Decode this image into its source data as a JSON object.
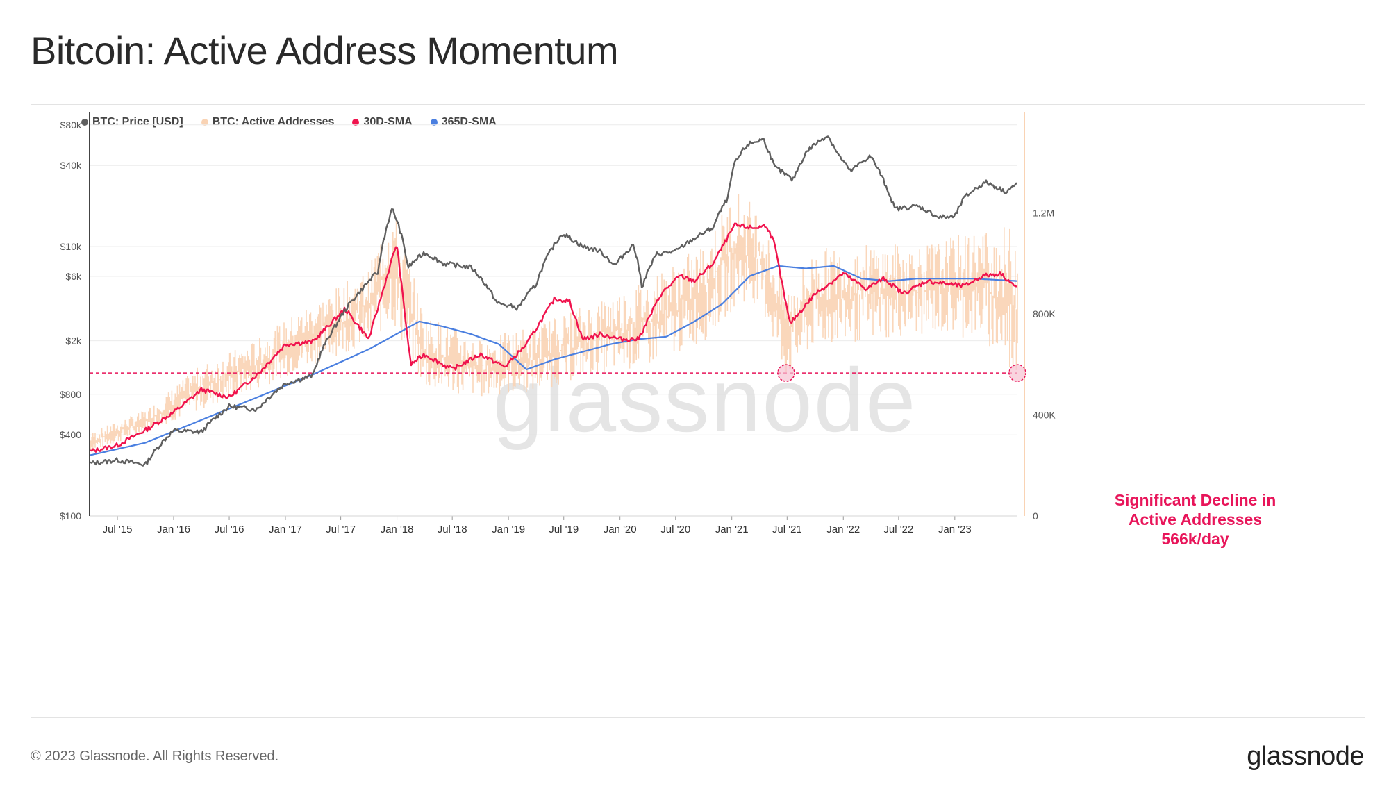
{
  "title": "Bitcoin: Active Address Momentum",
  "footer": {
    "copyright": "© 2023 Glassnode. All Rights Reserved.",
    "brand": "glassnode"
  },
  "watermark": "glassnode",
  "colors": {
    "price": "#5f5f5f",
    "active": "#f9d3b4",
    "sma30": "#f0134d",
    "sma365": "#4a7fe0",
    "annotation": "#e8155a"
  },
  "chart_data": {
    "type": "line",
    "legend": [
      {
        "name": "BTC: Price [USD]",
        "color": "#5f5f5f"
      },
      {
        "name": "BTC: Active Addresses",
        "color": "#f9d3b4"
      },
      {
        "name": "30D-SMA",
        "color": "#f0134d"
      },
      {
        "name": "365D-SMA",
        "color": "#4a7fe0"
      }
    ],
    "legend_position": "top-left",
    "x_ticks": [
      "Jul '15",
      "Jan '16",
      "Jul '16",
      "Jan '17",
      "Jul '17",
      "Jan '18",
      "Jul '18",
      "Jan '19",
      "Jul '19",
      "Jan '20",
      "Jul '20",
      "Jan '21",
      "Jul '21",
      "Jan '22",
      "Jul '22",
      "Jan '23"
    ],
    "x_range": [
      "2015-04-01",
      "2023-07-25"
    ],
    "y_left": {
      "scale": "log",
      "range": [
        100,
        100000
      ],
      "ticks": [
        "$100",
        "$400",
        "$800",
        "$2k",
        "$6k",
        "$10k",
        "$40k",
        "$80k"
      ],
      "tick_values": [
        100,
        400,
        800,
        2000,
        6000,
        10000,
        40000,
        80000
      ]
    },
    "y_right": {
      "scale": "linear",
      "range": [
        0,
        1600000
      ],
      "ticks": [
        "0",
        "400K",
        "800K",
        "1.2M"
      ],
      "tick_values": [
        0,
        400000,
        800000,
        1200000
      ]
    },
    "grid": true,
    "threshold_line": {
      "value": 566000
    },
    "annotation": {
      "lines": [
        "Significant Decline in",
        "Active Addresses",
        "566k/day"
      ]
    },
    "markers": [
      {
        "date": "2021-06-28",
        "value": 566000
      },
      {
        "date": "2023-07-25",
        "value": 566000
      }
    ],
    "series": [
      {
        "name": "BTC: Price [USD]",
        "axis": "left",
        "x": [
          "2015-04-01",
          "2015-07-01",
          "2015-10-01",
          "2016-01-01",
          "2016-04-01",
          "2016-07-01",
          "2016-10-01",
          "2017-01-01",
          "2017-04-01",
          "2017-06-15",
          "2017-09-01",
          "2017-11-01",
          "2017-12-17",
          "2018-02-06",
          "2018-04-01",
          "2018-06-01",
          "2018-09-01",
          "2018-11-25",
          "2019-02-01",
          "2019-04-01",
          "2019-06-26",
          "2019-09-01",
          "2019-10-26",
          "2019-12-15",
          "2020-02-14",
          "2020-03-13",
          "2020-05-01",
          "2020-07-01",
          "2020-09-01",
          "2020-11-01",
          "2020-12-20",
          "2021-01-08",
          "2021-02-21",
          "2021-04-14",
          "2021-05-20",
          "2021-07-20",
          "2021-09-07",
          "2021-11-10",
          "2021-12-15",
          "2022-01-24",
          "2022-03-30",
          "2022-05-15",
          "2022-06-18",
          "2022-09-01",
          "2022-11-09",
          "2023-01-01",
          "2023-02-01",
          "2023-03-20",
          "2023-04-14",
          "2023-06-15",
          "2023-07-25"
        ],
        "values": [
          245,
          260,
          240,
          430,
          420,
          650,
          620,
          960,
          1100,
          2600,
          4600,
          6500,
          19000,
          7000,
          9000,
          7500,
          7000,
          3800,
          3500,
          5200,
          12500,
          10000,
          9300,
          7200,
          10300,
          5000,
          8800,
          9200,
          11500,
          13800,
          23000,
          40000,
          57000,
          63000,
          39000,
          31000,
          52000,
          67000,
          48000,
          36000,
          47000,
          30000,
          19000,
          20000,
          16500,
          16600,
          23000,
          28000,
          30000,
          25500,
          29200
        ]
      },
      {
        "name": "BTC: Active Addresses (daily range)",
        "axis": "right",
        "x": [
          "2015-04-01",
          "2015-10-01",
          "2016-04-01",
          "2016-10-01",
          "2017-04-01",
          "2017-10-01",
          "2017-12-15",
          "2018-04-01",
          "2018-10-01",
          "2019-04-01",
          "2019-10-01",
          "2020-04-01",
          "2020-10-01",
          "2021-01-15",
          "2021-04-01",
          "2021-06-28",
          "2021-10-01",
          "2022-04-01",
          "2022-10-01",
          "2023-04-01",
          "2023-07-25"
        ],
        "low": [
          250000,
          330000,
          420000,
          500000,
          600000,
          680000,
          760000,
          500000,
          470000,
          490000,
          560000,
          590000,
          690000,
          830000,
          840000,
          540000,
          670000,
          690000,
          720000,
          700000,
          520000
        ],
        "high": [
          330000,
          420000,
          600000,
          700000,
          850000,
          980000,
          1250000,
          800000,
          700000,
          760000,
          850000,
          940000,
          1080000,
          1300000,
          1220000,
          900000,
          1060000,
          1080000,
          1080000,
          1140000,
          1150000
        ]
      },
      {
        "name": "30D-SMA",
        "axis": "right",
        "x": [
          "2015-04-01",
          "2015-07-01",
          "2015-10-01",
          "2016-01-01",
          "2016-04-01",
          "2016-07-01",
          "2016-10-01",
          "2017-01-01",
          "2017-04-01",
          "2017-07-15",
          "2017-10-01",
          "2017-12-31",
          "2018-02-15",
          "2018-04-01",
          "2018-07-01",
          "2018-10-01",
          "2018-12-20",
          "2019-03-01",
          "2019-06-01",
          "2019-07-20",
          "2019-09-01",
          "2019-11-01",
          "2020-01-01",
          "2020-03-01",
          "2020-05-15",
          "2020-07-15",
          "2020-09-01",
          "2020-11-01",
          "2021-01-10",
          "2021-03-15",
          "2021-04-25",
          "2021-05-20",
          "2021-07-10",
          "2021-10-01",
          "2022-01-01",
          "2022-03-15",
          "2022-05-15",
          "2022-07-15",
          "2022-10-01",
          "2022-12-01",
          "2023-02-01",
          "2023-04-01",
          "2023-06-01",
          "2023-07-25"
        ],
        "values": [
          255000,
          280000,
          340000,
          410000,
          500000,
          470000,
          560000,
          680000,
          690000,
          820000,
          700000,
          1080000,
          600000,
          640000,
          580000,
          640000,
          590000,
          680000,
          860000,
          850000,
          700000,
          720000,
          700000,
          700000,
          880000,
          950000,
          930000,
          1000000,
          1150000,
          1140000,
          1150000,
          1080000,
          760000,
          880000,
          960000,
          900000,
          940000,
          880000,
          930000,
          920000,
          910000,
          950000,
          960000,
          900000
        ]
      },
      {
        "name": "365D-SMA",
        "axis": "right",
        "x": [
          "2015-04-01",
          "2015-10-01",
          "2016-04-01",
          "2016-10-01",
          "2017-04-01",
          "2017-10-01",
          "2018-03-15",
          "2018-06-01",
          "2018-09-01",
          "2018-12-01",
          "2019-03-01",
          "2019-06-01",
          "2019-09-01",
          "2019-12-01",
          "2020-03-01",
          "2020-06-01",
          "2020-09-01",
          "2020-12-01",
          "2021-03-01",
          "2021-06-01",
          "2021-09-01",
          "2021-12-01",
          "2022-03-01",
          "2022-06-01",
          "2022-09-01",
          "2022-12-01",
          "2023-03-01",
          "2023-07-25"
        ],
        "values": [
          240000,
          290000,
          380000,
          470000,
          560000,
          660000,
          770000,
          750000,
          720000,
          680000,
          580000,
          620000,
          650000,
          680000,
          700000,
          710000,
          770000,
          840000,
          950000,
          990000,
          980000,
          990000,
          940000,
          930000,
          940000,
          940000,
          940000,
          930000
        ]
      }
    ]
  }
}
